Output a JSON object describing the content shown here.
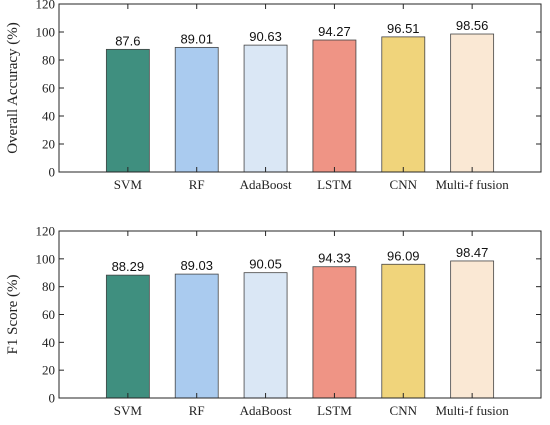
{
  "chart_data": [
    {
      "type": "bar",
      "ylabel": "Overall Accuracy (%)",
      "ylim": [
        0,
        120
      ],
      "yticks": [
        0,
        20,
        40,
        60,
        80,
        100,
        120
      ],
      "categories": [
        "SVM",
        "RF",
        "AdaBoost",
        "LSTM",
        "CNN",
        "Multi-f fusion"
      ],
      "values": [
        87.6,
        89.01,
        90.63,
        94.27,
        96.51,
        98.56
      ],
      "value_labels": [
        "87.6",
        "89.01",
        "90.63",
        "94.27",
        "96.51",
        "98.56"
      ],
      "colors": [
        "#3f8f7f",
        "#aacbef",
        "#dae7f5",
        "#ef9485",
        "#f0d47b",
        "#fae8d4"
      ],
      "grid": false,
      "legend": "none"
    },
    {
      "type": "bar",
      "ylabel": "F1 Score (%)",
      "ylim": [
        0,
        120
      ],
      "yticks": [
        0,
        20,
        40,
        60,
        80,
        100,
        120
      ],
      "categories": [
        "SVM",
        "RF",
        "AdaBoost",
        "LSTM",
        "CNN",
        "Multi-f fusion"
      ],
      "values": [
        88.29,
        89.03,
        90.05,
        94.33,
        96.09,
        98.47
      ],
      "value_labels": [
        "88.29",
        "89.03",
        "90.05",
        "94.33",
        "96.09",
        "98.47"
      ],
      "colors": [
        "#3f8f7f",
        "#aacbef",
        "#dae7f5",
        "#ef9485",
        "#f0d47b",
        "#fae8d4"
      ],
      "grid": false,
      "legend": "none"
    }
  ]
}
